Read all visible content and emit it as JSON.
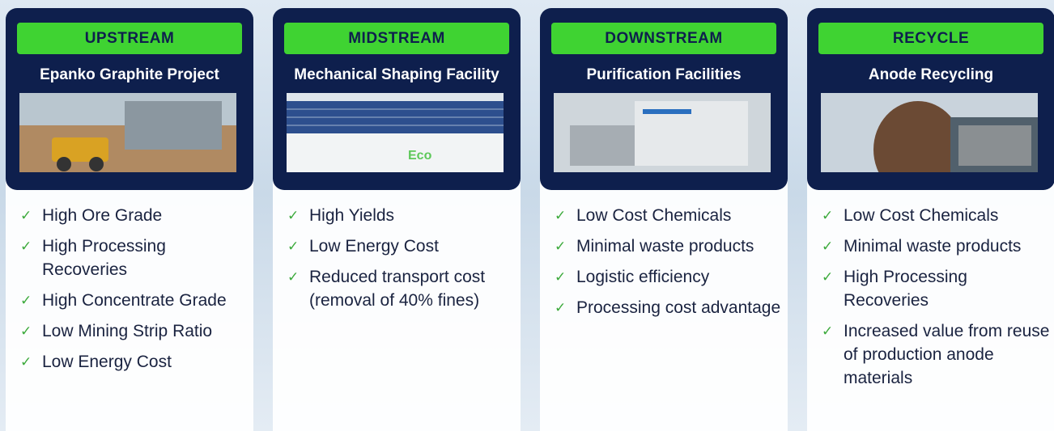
{
  "columns": [
    {
      "stage": "UPSTREAM",
      "title": "Epanko Graphite Project",
      "items": [
        "High Ore Grade",
        "High Processing Recoveries",
        "High Concentrate Grade",
        "Low Mining Strip Ratio",
        "Low Energy Cost"
      ]
    },
    {
      "stage": "MIDSTREAM",
      "title": "Mechanical Shaping Facility",
      "items": [
        "High Yields",
        "Low Energy Cost",
        "Reduced transport cost (removal of 40% fines)"
      ]
    },
    {
      "stage": "DOWNSTREAM",
      "title": "Purification Facilities",
      "items": [
        "Low Cost Chemicals",
        "Minimal waste products",
        "Logistic efficiency",
        "Processing cost advantage"
      ]
    },
    {
      "stage": "RECYCLE",
      "title": "Anode Recycling",
      "items": [
        "Low Cost Chemicals",
        "Minimal waste products",
        "High Processing Recoveries",
        "Increased value from reuse of production anode materials"
      ]
    }
  ]
}
